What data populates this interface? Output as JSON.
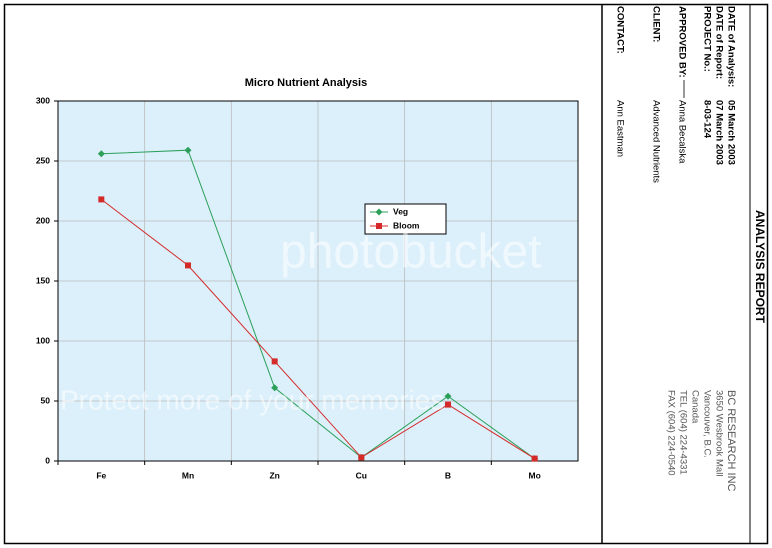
{
  "chart_data": {
    "type": "line",
    "title": "Micro Nutrient Analysis",
    "categories": [
      "Fe",
      "Mn",
      "Zn",
      "Cu",
      "B",
      "Mo"
    ],
    "series": [
      {
        "name": "Veg",
        "color": "#2ca05a",
        "values": [
          256,
          259,
          61,
          3,
          54,
          2
        ]
      },
      {
        "name": "Bloom",
        "color": "#d42a2a",
        "values": [
          218,
          163,
          83,
          3,
          47,
          2
        ]
      }
    ],
    "ylim": [
      0,
      300
    ],
    "yticks": [
      0,
      50,
      100,
      150,
      200,
      250,
      300
    ],
    "grid": true
  },
  "report": {
    "title": "ANALYSIS REPORT",
    "fields": [
      {
        "label": "DATE of Analysis:",
        "value": "05 March 2003"
      },
      {
        "label": "DATE of Report:",
        "value": "07 March 2003"
      },
      {
        "label": "PROJECT No.:",
        "value": "8-03-124"
      },
      {
        "label": "APPROVED BY:",
        "value": "Anna Becalska"
      },
      {
        "label": "CLIENT:",
        "value": "Advanced Nutrients"
      },
      {
        "label": "CONTACT:",
        "value": "Ann Eastman"
      }
    ],
    "company": [
      "BC RESEARCH INC",
      "3650 Wesbrook Mall",
      "Vancouver, B.C.",
      "Canada",
      "TEL (604) 224-4331",
      "FAX (604) 224-0540"
    ]
  },
  "watermark": {
    "logo": "photobucket",
    "slogan": "Protect more of your memories"
  }
}
